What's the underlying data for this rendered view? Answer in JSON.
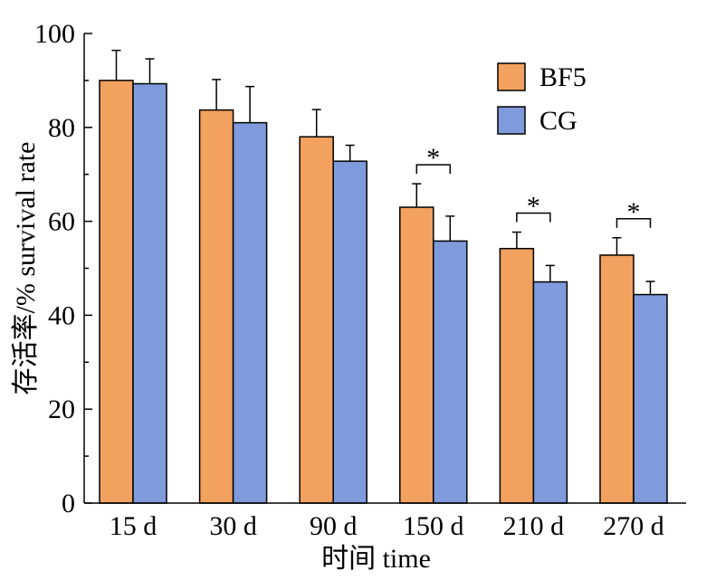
{
  "chart_data": {
    "type": "bar",
    "categories": [
      "15 d",
      "30 d",
      "90 d",
      "150 d",
      "210 d",
      "270 d"
    ],
    "series": [
      {
        "name": "BF5",
        "color": "#f2a15f",
        "values": [
          90.0,
          83.7,
          78.0,
          63.0,
          54.2,
          52.8
        ],
        "errors": [
          6.4,
          6.5,
          5.8,
          5.0,
          3.5,
          3.7
        ]
      },
      {
        "name": "CG",
        "color": "#7f9bdc",
        "values": [
          89.3,
          81.0,
          72.8,
          55.8,
          47.1,
          44.4
        ],
        "errors": [
          5.3,
          7.7,
          3.4,
          5.3,
          3.5,
          2.8
        ]
      }
    ],
    "xlabel": "时间 time",
    "ylabel": "存活率/% survival rate",
    "ylim": [
      0,
      100
    ],
    "yticks": [
      0,
      20,
      40,
      60,
      80,
      100
    ],
    "legend_position": "top-right",
    "significance": [
      {
        "category": "150 d",
        "label": "*"
      },
      {
        "category": "210 d",
        "label": "*"
      },
      {
        "category": "270 d",
        "label": "*"
      }
    ]
  }
}
